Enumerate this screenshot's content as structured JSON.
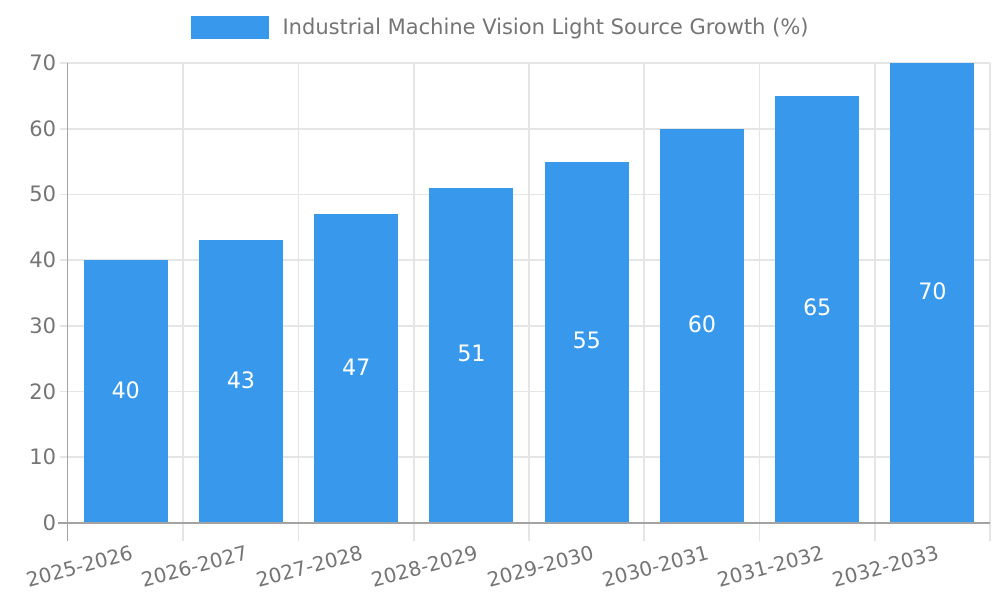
{
  "legend": {
    "label": "Industrial Machine Vision Light Source Growth (%)"
  },
  "chart_data": {
    "type": "bar",
    "title": "Industrial Machine Vision Light Source Growth (%)",
    "categories": [
      "2025-2026",
      "2026-2027",
      "2027-2028",
      "2028-2029",
      "2029-2030",
      "2030-2031",
      "2031-2032",
      "2032-2033"
    ],
    "values": [
      40,
      43,
      47,
      51,
      55,
      60,
      65,
      70
    ],
    "xlabel": "",
    "ylabel": "",
    "ylim": [
      0,
      70
    ],
    "yticks": [
      0,
      10,
      20,
      30,
      40,
      50,
      60,
      70
    ],
    "grid": true,
    "legend_position": "top",
    "value_labels_shown": true,
    "colors": {
      "bar": "#3899EC",
      "value_label": "#FFFFFF",
      "grid": "#E5E5E5",
      "axis": "#A3A3A3",
      "tick_label": "#757575"
    },
    "x_label_rotation_deg": -15
  }
}
